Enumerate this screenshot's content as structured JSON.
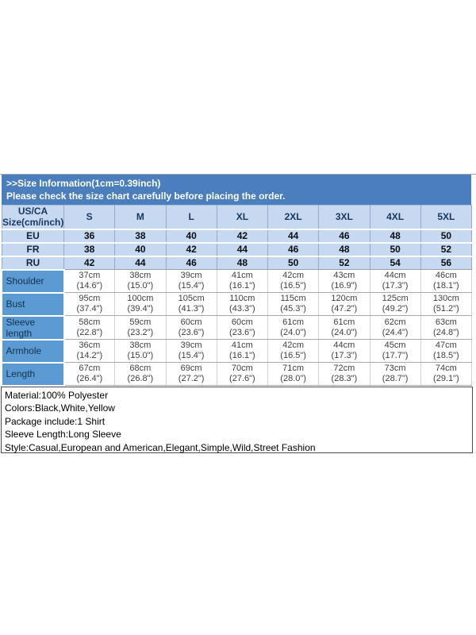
{
  "banner": {
    "title": ">>Size Information(1cm=0.39inch)",
    "subtitle": "Please check the size chart carefully before placing the order."
  },
  "table": {
    "corner_line1": "US/CA",
    "corner_line2": "Size(cm/inch)",
    "size_columns": [
      "S",
      "M",
      "L",
      "XL",
      "2XL",
      "3XL",
      "4XL",
      "5XL"
    ],
    "region_rows": [
      {
        "label": "EU",
        "values": [
          "36",
          "38",
          "40",
          "42",
          "44",
          "46",
          "48",
          "50"
        ]
      },
      {
        "label": "FR",
        "values": [
          "38",
          "40",
          "42",
          "44",
          "46",
          "48",
          "50",
          "52"
        ]
      },
      {
        "label": "RU",
        "values": [
          "42",
          "44",
          "46",
          "48",
          "50",
          "52",
          "54",
          "56"
        ]
      }
    ],
    "measurement_rows": [
      {
        "label": "Shoulder",
        "cm": [
          "37cm",
          "38cm",
          "39cm",
          "41cm",
          "42cm",
          "43cm",
          "44cm",
          "46cm"
        ],
        "inch": [
          "(14.6\")",
          "(15.0\")",
          "(15.4\")",
          "(16.1\")",
          "(16.5\")",
          "(16.9\")",
          "(17.3\")",
          "(18.1\")"
        ]
      },
      {
        "label": "Bust",
        "cm": [
          "95cm",
          "100cm",
          "105cm",
          "110cm",
          "115cm",
          "120cm",
          "125cm",
          "130cm"
        ],
        "inch": [
          "(37.4\")",
          "(39.4\")",
          "(41.3\")",
          "(43.3\")",
          "(45.3\")",
          "(47.2\")",
          "(49.2\")",
          "(51.2\")"
        ]
      },
      {
        "label": "Sleeve length",
        "cm": [
          "58cm",
          "59cm",
          "60cm",
          "60cm",
          "61cm",
          "61cm",
          "62cm",
          "63cm"
        ],
        "inch": [
          "(22.8\")",
          "(23.2\")",
          "(23.6\")",
          "(23.6\")",
          "(24.0\")",
          "(24.0\")",
          "(24.4\")",
          "(24.8\")"
        ]
      },
      {
        "label": "Armhole",
        "cm": [
          "36cm",
          "38cm",
          "39cm",
          "41cm",
          "42cm",
          "44cm",
          "45cm",
          "47cm"
        ],
        "inch": [
          "(14.2\")",
          "(15.0\")",
          "(15.4\")",
          "(16.1\")",
          "(16.5\")",
          "(17.3\")",
          "(17.7\")",
          "(18.5\")"
        ]
      },
      {
        "label": "Length",
        "cm": [
          "67cm",
          "68cm",
          "69cm",
          "70cm",
          "71cm",
          "72cm",
          "73cm",
          "74cm"
        ],
        "inch": [
          "(26.4\")",
          "(26.8\")",
          "(27.2\")",
          "(27.6\")",
          "(28.0\")",
          "(28.3\")",
          "(28.7\")",
          "(29.1\")"
        ]
      }
    ]
  },
  "details": {
    "lines": [
      "Material:100% Polyester",
      "Colors:Black,White,Yellow",
      "Package include:1 Shirt",
      "Sleeve Length:Long Sleeve",
      "Style:Casual,European and American,Elegant,Simple,Wild,Street Fashion"
    ]
  },
  "colors": {
    "banner_blue": "#4a7ebc",
    "light_blue": "#c6d9f0",
    "label_blue": "#5b9ad2",
    "header_text": "#17375e"
  }
}
